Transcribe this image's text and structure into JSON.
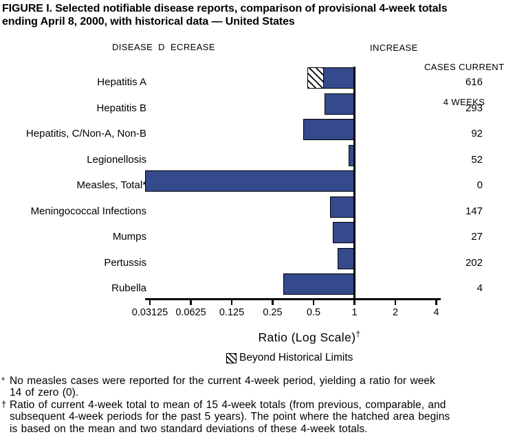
{
  "title": {
    "line1": "FIGURE I. Selected notifiable disease reports, comparison of provisional 4-week totals",
    "line2": "ending April 8, 2000, with historical data — United States"
  },
  "header": {
    "disease_decrease": "DISEASE  D  ECREASE",
    "increase": "INCREASE",
    "cases_line1": "CASES CURRENT",
    "cases_line2": "4 WEEKS"
  },
  "chart_data": {
    "type": "bar",
    "orientation": "horizontal",
    "x_scale": "log2",
    "x_range": [
      0.03125,
      4
    ],
    "baseline_value": 1,
    "x_tick_labels": [
      "0.03125",
      "0.0625",
      "0.125",
      "0.25",
      "0.5",
      "1",
      "2",
      "4"
    ],
    "xlabel": "Ratio (Log Scale)",
    "xlabel_sup": "†",
    "bar_color": "#344A8C",
    "grid": "off",
    "legend_position": "bottom-center",
    "rows": [
      {
        "label": "Hepatitis A",
        "ratio": 0.45,
        "hatch_to": 0.6,
        "cases": "616"
      },
      {
        "label": "Hepatitis B",
        "ratio": 0.6,
        "cases": "293"
      },
      {
        "label": "Hepatitis, C/Non-A, Non-B",
        "ratio": 0.42,
        "cases": "92"
      },
      {
        "label": "Legionellosis",
        "ratio": 0.91,
        "cases": "52"
      },
      {
        "label": "Measles, Total*",
        "ratio": 0,
        "cases": "0"
      },
      {
        "label": "Meningococcal Infections",
        "ratio": 0.66,
        "cases": "147"
      },
      {
        "label": "Mumps",
        "ratio": 0.69,
        "cases": "27"
      },
      {
        "label": "Pertussis",
        "ratio": 0.75,
        "cases": "202"
      },
      {
        "label": "Rubella",
        "ratio": 0.3,
        "cases": "4"
      }
    ],
    "legend": [
      {
        "swatch": "hatched",
        "label": "Beyond Historical Limits"
      }
    ]
  },
  "footnotes": [
    {
      "marker": "*",
      "lines": [
        "No measles cases were reported for the current 4-week period, yielding a ratio for week",
        "14 of zero (0)."
      ]
    },
    {
      "marker": "†",
      "lines": [
        "Ratio of current 4-week total to mean of 15 4-week totals (from previous, comparable, and",
        "subsequent 4-week periods for the past 5 years). The point where the hatched area begins",
        "is based on the mean and two standard deviations of these 4-week totals."
      ]
    }
  ]
}
